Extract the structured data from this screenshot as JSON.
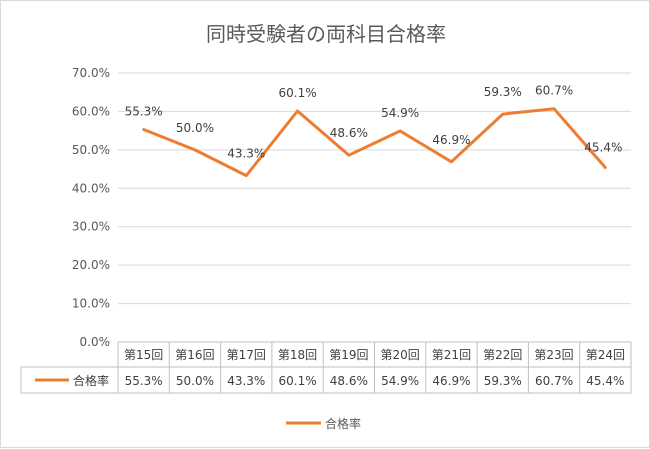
{
  "chart_data": {
    "type": "line",
    "title": "同時受験者の両科目合格率",
    "categories": [
      "第15回",
      "第16回",
      "第17回",
      "第18回",
      "第19回",
      "第20回",
      "第21回",
      "第22回",
      "第23回",
      "第24回"
    ],
    "series": [
      {
        "name": "合格率",
        "color": "#ED7D31",
        "values": [
          55.3,
          50.0,
          43.3,
          60.1,
          48.6,
          54.9,
          46.9,
          59.3,
          60.7,
          45.4
        ],
        "labels": [
          "55.3%",
          "50.0%",
          "43.3%",
          "60.1%",
          "48.6%",
          "54.9%",
          "46.9%",
          "59.3%",
          "60.7%",
          "45.4%"
        ]
      }
    ],
    "y_ticks": [
      "0.0%",
      "10.0%",
      "20.0%",
      "30.0%",
      "40.0%",
      "50.0%",
      "60.0%",
      "70.0%"
    ],
    "ylim": [
      0,
      70
    ],
    "grid": true,
    "data_table": true,
    "legend_position": "bottom"
  }
}
